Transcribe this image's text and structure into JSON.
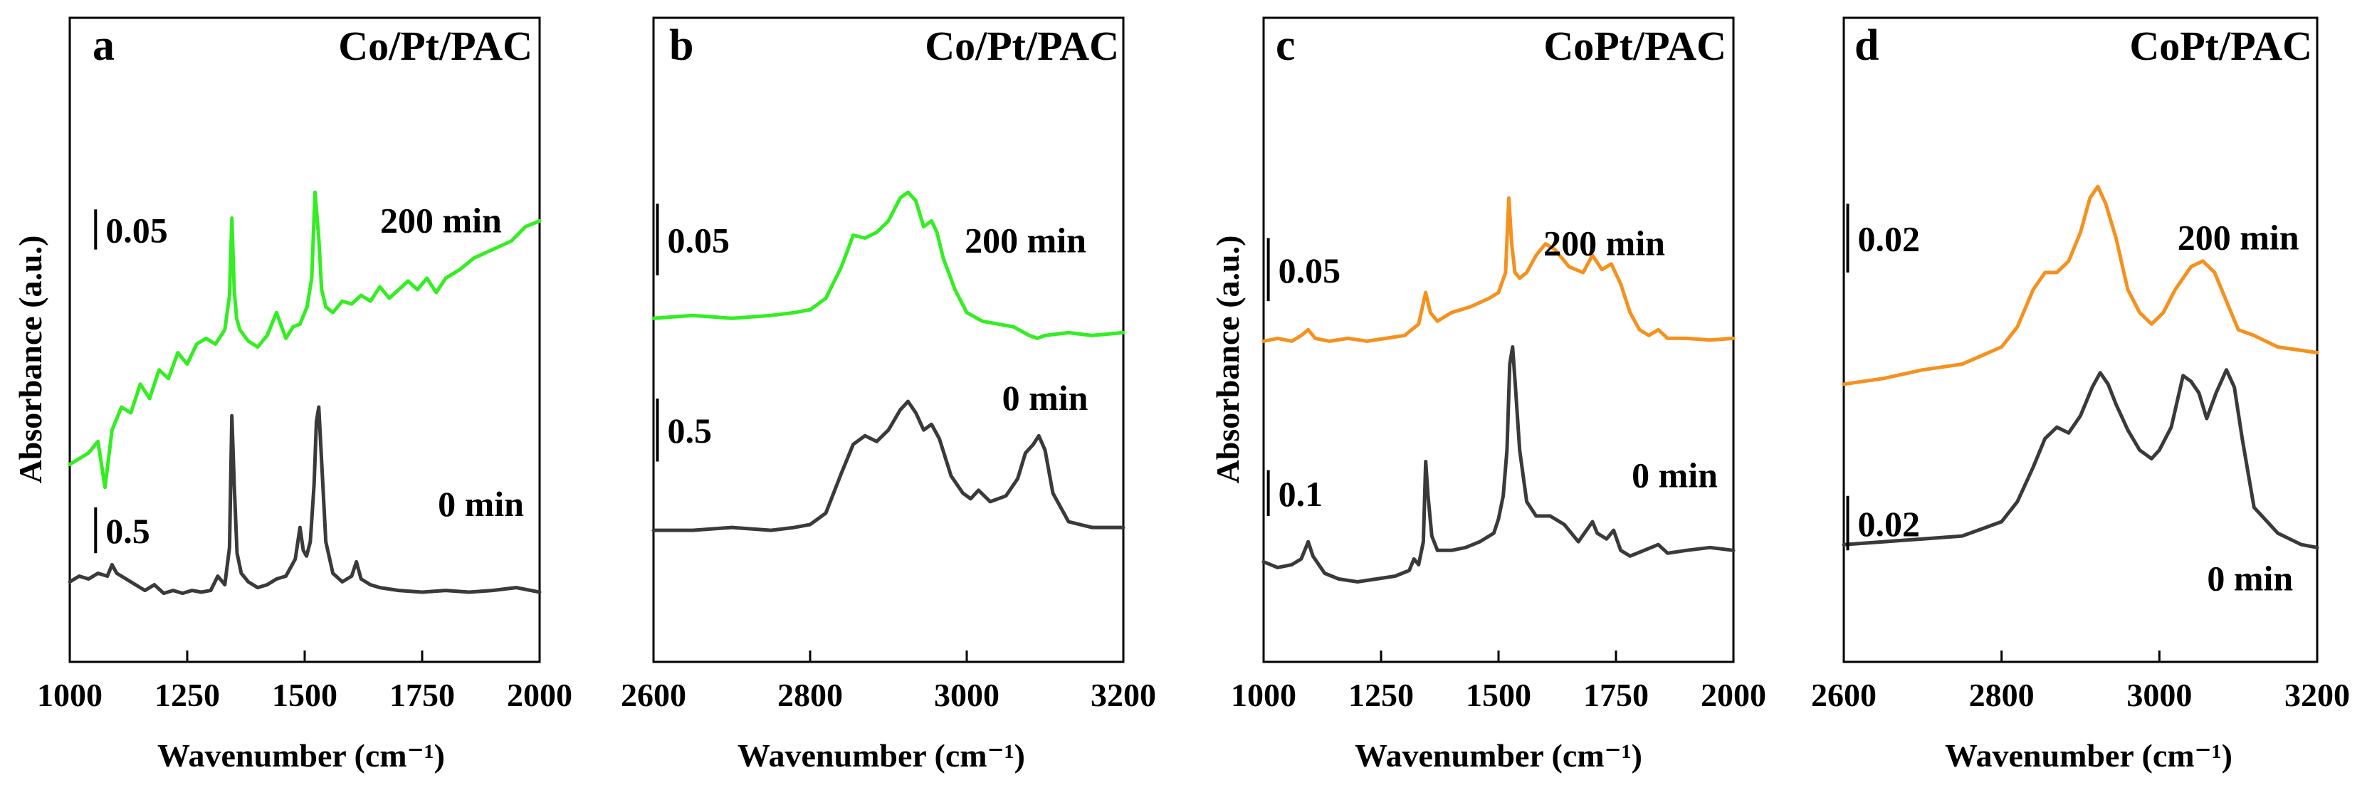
{
  "chart_data": [
    {
      "type": "line",
      "panel": "a",
      "title": "Co/Pt/PAC",
      "xlabel": "Wavenumber (cm⁻¹)",
      "ylabel": "Absorbance (a.u.)",
      "xlim": [
        1000,
        2000
      ],
      "ylim": [
        0,
        10
      ],
      "xticks": [
        1000,
        1250,
        1500,
        1750,
        2000
      ],
      "tick_labels": [
        "1000",
        "1250",
        "1500",
        "1750",
        "2000"
      ],
      "series": [
        {
          "name": "200 min",
          "color": "#33ee22",
          "label_at": [
            1790,
            7.0
          ],
          "scale_bar": {
            "label": "0.05",
            "x": 1055,
            "y_from": 6.7,
            "y_to": 7.4
          },
          "x": [
            1000,
            1020,
            1040,
            1060,
            1075,
            1090,
            1110,
            1130,
            1150,
            1170,
            1190,
            1210,
            1230,
            1250,
            1270,
            1290,
            1310,
            1330,
            1340,
            1345,
            1350,
            1355,
            1362,
            1380,
            1400,
            1420,
            1440,
            1460,
            1475,
            1490,
            1505,
            1515,
            1522,
            1530,
            1536,
            1545,
            1560,
            1580,
            1600,
            1620,
            1640,
            1660,
            1680,
            1700,
            1720,
            1740,
            1760,
            1780,
            1800,
            1830,
            1860,
            1900,
            1940,
            1970,
            2000
          ],
          "y": [
            2.95,
            3.05,
            3.15,
            3.35,
            2.55,
            3.55,
            3.95,
            3.85,
            4.35,
            4.1,
            4.6,
            4.45,
            4.9,
            4.7,
            5.05,
            5.15,
            5.05,
            5.3,
            5.9,
            7.25,
            6.0,
            5.5,
            5.3,
            5.1,
            5.0,
            5.2,
            5.6,
            5.15,
            5.35,
            5.4,
            5.7,
            6.2,
            7.7,
            6.9,
            6.0,
            5.7,
            5.6,
            5.8,
            5.75,
            5.9,
            5.8,
            6.05,
            5.85,
            6.0,
            6.15,
            6.0,
            6.2,
            5.95,
            6.2,
            6.35,
            6.55,
            6.7,
            6.85,
            7.1,
            7.2
          ]
        },
        {
          "name": "0 min",
          "color": "#3a3a3a",
          "label_at": [
            1875,
            2.05
          ],
          "scale_bar": {
            "label": "0.5",
            "x": 1055,
            "y_from": 1.4,
            "y_to": 2.2
          },
          "x": [
            1000,
            1020,
            1040,
            1060,
            1080,
            1090,
            1100,
            1120,
            1140,
            1160,
            1180,
            1200,
            1220,
            1240,
            1260,
            1280,
            1300,
            1315,
            1330,
            1340,
            1345,
            1350,
            1356,
            1365,
            1380,
            1400,
            1420,
            1440,
            1460,
            1480,
            1490,
            1497,
            1504,
            1512,
            1520,
            1525,
            1530,
            1536,
            1545,
            1560,
            1580,
            1600,
            1610,
            1620,
            1640,
            1660,
            1700,
            1750,
            1800,
            1850,
            1900,
            1950,
            2000
          ],
          "y": [
            0.9,
            1.0,
            0.95,
            1.05,
            1.0,
            1.2,
            1.05,
            0.95,
            0.85,
            0.75,
            0.85,
            0.7,
            0.75,
            0.7,
            0.75,
            0.72,
            0.75,
            1.0,
            0.85,
            1.5,
            3.8,
            2.6,
            1.4,
            1.05,
            0.9,
            0.8,
            0.85,
            0.95,
            1.0,
            1.3,
            1.85,
            1.45,
            1.35,
            1.6,
            2.6,
            3.7,
            3.95,
            3.0,
            1.6,
            1.05,
            0.9,
            1.0,
            1.25,
            0.95,
            0.85,
            0.8,
            0.75,
            0.72,
            0.75,
            0.72,
            0.75,
            0.8,
            0.72
          ]
        }
      ]
    },
    {
      "type": "line",
      "panel": "b",
      "title": "Co/Pt/PAC",
      "xlabel": "Wavenumber (cm⁻¹)",
      "ylabel": "",
      "xlim": [
        2600,
        3200
      ],
      "ylim": [
        0,
        10
      ],
      "xticks": [
        2600,
        2800,
        3000,
        3200
      ],
      "tick_labels": [
        "2600",
        "2800",
        "3000",
        "3200"
      ],
      "series": [
        {
          "name": "200 min",
          "color": "#33ee22",
          "label_at": [
            3075,
            6.65
          ],
          "scale_bar": {
            "label": "0.05",
            "x": 2605,
            "y_from": 6.25,
            "y_to": 7.5
          },
          "x": [
            2600,
            2650,
            2700,
            2750,
            2780,
            2800,
            2820,
            2840,
            2855,
            2870,
            2885,
            2900,
            2915,
            2925,
            2935,
            2945,
            2955,
            2962,
            2970,
            2985,
            3000,
            3020,
            3040,
            3060,
            3080,
            3090,
            3100,
            3130,
            3160,
            3200
          ],
          "y": [
            5.5,
            5.55,
            5.5,
            5.55,
            5.6,
            5.65,
            5.85,
            6.4,
            6.95,
            6.9,
            7.0,
            7.2,
            7.6,
            7.7,
            7.55,
            7.1,
            7.2,
            7.0,
            6.55,
            6.0,
            5.6,
            5.45,
            5.4,
            5.35,
            5.2,
            5.15,
            5.2,
            5.25,
            5.2,
            5.25
          ]
        },
        {
          "name": "0 min",
          "color": "#3a3a3a",
          "label_at": [
            3100,
            3.9
          ],
          "scale_bar": {
            "label": "0.5",
            "x": 2605,
            "y_from": 3.0,
            "y_to": 4.1
          },
          "x": [
            2600,
            2650,
            2700,
            2750,
            2780,
            2800,
            2820,
            2840,
            2855,
            2870,
            2885,
            2900,
            2915,
            2925,
            2935,
            2945,
            2955,
            2965,
            2980,
            2995,
            3005,
            3015,
            3030,
            3050,
            3065,
            3075,
            3085,
            3092,
            3100,
            3110,
            3130,
            3160,
            3200
          ],
          "y": [
            1.8,
            1.8,
            1.85,
            1.8,
            1.85,
            1.9,
            2.1,
            2.8,
            3.3,
            3.45,
            3.35,
            3.55,
            3.9,
            4.05,
            3.85,
            3.55,
            3.65,
            3.4,
            2.75,
            2.45,
            2.35,
            2.5,
            2.3,
            2.4,
            2.7,
            3.15,
            3.3,
            3.45,
            3.2,
            2.45,
            1.95,
            1.85,
            1.85
          ]
        }
      ]
    },
    {
      "type": "line",
      "panel": "c",
      "title": "CoPt/PAC",
      "xlabel": "Wavenumber (cm⁻¹)",
      "ylabel": "Absorbance (a.u.)",
      "xlim": [
        1000,
        2000
      ],
      "ylim": [
        0,
        10
      ],
      "xticks": [
        1000,
        1250,
        1500,
        1750,
        2000
      ],
      "tick_labels": [
        "1000",
        "1250",
        "1500",
        "1750",
        "2000"
      ],
      "series": [
        {
          "name": "200 min",
          "color": "#f5911e",
          "label_at": [
            1725,
            6.6
          ],
          "scale_bar": {
            "label": "0.05",
            "x": 1010,
            "y_from": 5.8,
            "y_to": 6.9
          },
          "x": [
            1000,
            1030,
            1060,
            1080,
            1095,
            1110,
            1140,
            1180,
            1220,
            1260,
            1300,
            1330,
            1345,
            1355,
            1370,
            1400,
            1440,
            1480,
            1500,
            1515,
            1522,
            1528,
            1535,
            1545,
            1560,
            1580,
            1600,
            1620,
            1650,
            1680,
            1700,
            1720,
            1740,
            1760,
            1780,
            1800,
            1820,
            1840,
            1860,
            1900,
            1950,
            2000
          ],
          "y": [
            5.1,
            5.15,
            5.1,
            5.2,
            5.3,
            5.15,
            5.1,
            5.15,
            5.1,
            5.15,
            5.2,
            5.4,
            5.95,
            5.6,
            5.45,
            5.6,
            5.7,
            5.85,
            5.95,
            6.3,
            7.6,
            6.8,
            6.3,
            6.2,
            6.3,
            6.6,
            6.8,
            6.7,
            6.4,
            6.3,
            6.6,
            6.35,
            6.45,
            6.1,
            5.6,
            5.3,
            5.2,
            5.3,
            5.15,
            5.15,
            5.12,
            5.15
          ]
        },
        {
          "name": "0 min",
          "color": "#3a3a3a",
          "label_at": [
            1875,
            2.55
          ],
          "scale_bar": {
            "label": "0.1",
            "x": 1010,
            "y_from": 2.05,
            "y_to": 2.85
          },
          "x": [
            1000,
            1030,
            1060,
            1080,
            1090,
            1095,
            1105,
            1130,
            1160,
            1200,
            1240,
            1280,
            1310,
            1320,
            1330,
            1340,
            1345,
            1350,
            1358,
            1370,
            1400,
            1430,
            1460,
            1490,
            1500,
            1510,
            1518,
            1524,
            1530,
            1536,
            1545,
            1560,
            1580,
            1610,
            1640,
            1670,
            1700,
            1710,
            1730,
            1745,
            1760,
            1780,
            1810,
            1840,
            1860,
            1900,
            1950,
            2000
          ],
          "y": [
            1.25,
            1.15,
            1.2,
            1.3,
            1.5,
            1.6,
            1.35,
            1.05,
            0.95,
            0.9,
            0.95,
            1.0,
            1.1,
            1.3,
            1.2,
            1.6,
            3.0,
            2.4,
            1.7,
            1.45,
            1.45,
            1.5,
            1.6,
            1.75,
            2.0,
            2.4,
            3.2,
            4.7,
            5.0,
            4.3,
            3.2,
            2.3,
            2.05,
            2.05,
            1.9,
            1.6,
            1.95,
            1.75,
            1.65,
            1.8,
            1.45,
            1.35,
            1.45,
            1.55,
            1.4,
            1.45,
            1.5,
            1.45
          ]
        }
      ]
    },
    {
      "type": "line",
      "panel": "d",
      "title": "CoPt/PAC",
      "xlabel": "Wavenumber (cm⁻¹)",
      "ylabel": "",
      "xlim": [
        2600,
        3200
      ],
      "ylim": [
        0,
        10
      ],
      "xticks": [
        2600,
        2800,
        3000,
        3200
      ],
      "tick_labels": [
        "2600",
        "2800",
        "3000",
        "3200"
      ],
      "series": [
        {
          "name": "200 min",
          "color": "#f5911e",
          "label_at": [
            3100,
            6.7
          ],
          "scale_bar": {
            "label": "0.02",
            "x": 2605,
            "y_from": 6.3,
            "y_to": 7.5
          },
          "x": [
            2600,
            2650,
            2700,
            2750,
            2800,
            2820,
            2840,
            2855,
            2870,
            2885,
            2900,
            2912,
            2922,
            2932,
            2945,
            2960,
            2975,
            2990,
            3005,
            3020,
            3040,
            3055,
            3070,
            3085,
            3100,
            3120,
            3150,
            3200
          ],
          "y": [
            4.35,
            4.45,
            4.6,
            4.7,
            5.0,
            5.35,
            6.0,
            6.3,
            6.3,
            6.5,
            7.0,
            7.6,
            7.8,
            7.5,
            6.9,
            6.0,
            5.6,
            5.4,
            5.6,
            6.0,
            6.4,
            6.5,
            6.3,
            5.8,
            5.3,
            5.2,
            5.0,
            4.9
          ]
        },
        {
          "name": "0 min",
          "color": "#3a3a3a",
          "label_at": [
            3115,
            0.75
          ],
          "scale_bar": {
            "label": "0.02",
            "x": 2605,
            "y_from": 1.45,
            "y_to": 2.4
          },
          "x": [
            2600,
            2650,
            2700,
            2750,
            2780,
            2800,
            2820,
            2840,
            2855,
            2870,
            2885,
            2900,
            2915,
            2925,
            2935,
            2945,
            2960,
            2975,
            2990,
            3000,
            3015,
            3030,
            3040,
            3050,
            3060,
            3072,
            3085,
            3095,
            3105,
            3120,
            3150,
            3180,
            3200
          ],
          "y": [
            1.55,
            1.6,
            1.65,
            1.7,
            1.85,
            1.95,
            2.3,
            2.9,
            3.4,
            3.6,
            3.5,
            3.8,
            4.3,
            4.55,
            4.35,
            4.0,
            3.55,
            3.2,
            3.05,
            3.2,
            3.6,
            4.5,
            4.4,
            4.2,
            3.75,
            4.2,
            4.6,
            4.3,
            3.4,
            2.2,
            1.75,
            1.55,
            1.5
          ]
        }
      ]
    }
  ]
}
